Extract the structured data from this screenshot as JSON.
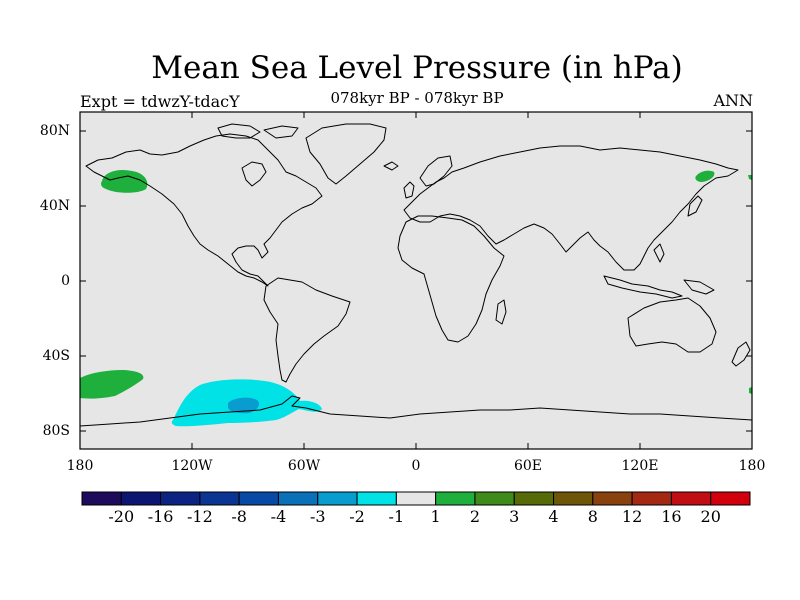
{
  "title": "Mean Sea Level Pressure (in hPa)",
  "subtitle_left": "Expt = tdwzY-tdacY",
  "subtitle_center": "078kyr BP - 078kyr BP",
  "subtitle_right": "ANN",
  "lat_labels": [
    "80N",
    "40N",
    "0",
    "40S",
    "80S"
  ],
  "lon_labels": [
    "180",
    "120W",
    "60W",
    "0",
    "60E",
    "120E",
    "180"
  ],
  "colorbar": {
    "labels": [
      "-20",
      "-16",
      "-12",
      "-8",
      "-4",
      "-3",
      "-2",
      "-1",
      "1",
      "2",
      "3",
      "4",
      "8",
      "12",
      "16",
      "20"
    ],
    "colors": [
      "#1e0b5c",
      "#0c1672",
      "#0d2384",
      "#0a3593",
      "#0749a4",
      "#0a71b8",
      "#089ccf",
      "#00e2e5",
      "#e6e6e6",
      "#1eaf3c",
      "#3e8a1a",
      "#566a08",
      "#6e5608",
      "#89420e",
      "#a52812",
      "#c00e14",
      "#d2000c"
    ]
  },
  "chart_data": {
    "type": "heatmap",
    "title": "Mean Sea Level Pressure (in hPa)",
    "projection": "cylindrical equidistant",
    "xlim": [
      -180,
      180
    ],
    "ylim": [
      -90,
      90
    ],
    "background_value_range": [
      -1,
      1
    ],
    "regions": [
      {
        "name": "North Pacific (Gulf of Alaska)",
        "lon_center": -145,
        "lat_center": 55,
        "value_range": [
          1,
          2
        ]
      },
      {
        "name": "Kamchatka",
        "lon_center": 160,
        "lat_center": 57,
        "value_range": [
          1,
          2
        ]
      },
      {
        "name": "South Pacific (near New Zealand, east)",
        "lon_center": -165,
        "lat_center": -52,
        "value_range": [
          1,
          2
        ]
      },
      {
        "name": "Amundsen-Bellingshausen Sea",
        "lon_center": -100,
        "lat_center": -65,
        "value_range": [
          -2,
          -1
        ]
      },
      {
        "name": "Amundsen Sea core",
        "lon_center": -96,
        "lat_center": -66,
        "value_range": [
          -3,
          -2
        ]
      }
    ]
  }
}
